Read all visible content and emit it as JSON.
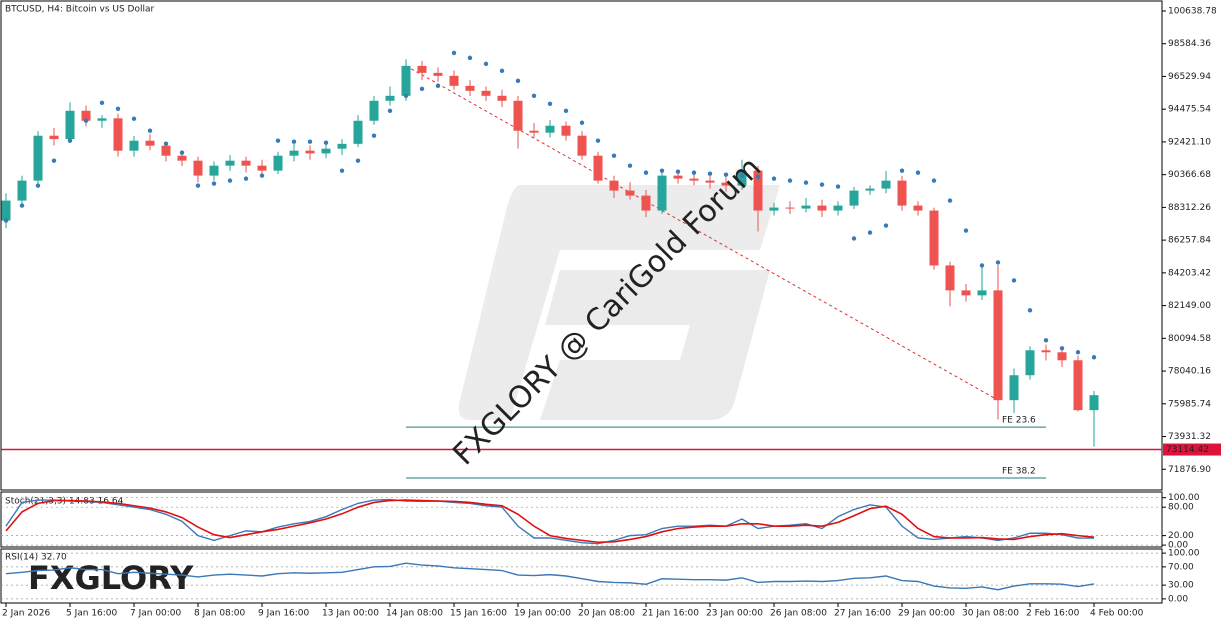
{
  "chart_data": [
    {
      "type": "candlestick",
      "title": "BTCUSD, H4:  Bitcoin vs US Dollar",
      "up_color": "#26a69a",
      "down_color": "#ef5350",
      "sar_color": "#3b78b7",
      "categories": [
        "2 Jan 2026",
        null,
        null,
        null,
        "5 Jan 16:00",
        null,
        null,
        null,
        "7 Jan 00:00",
        null,
        null,
        null,
        "8 Jan 08:00",
        null,
        null,
        null,
        "9 Jan 16:00",
        null,
        null,
        null,
        "13 Jan 00:00",
        null,
        null,
        null,
        "14 Jan 08:00",
        null,
        null,
        null,
        "15 Jan 16:00",
        null,
        null,
        null,
        "19 Jan 00:00",
        null,
        null,
        null,
        "20 Jan 08:00",
        null,
        null,
        null,
        "21 Jan 16:00",
        null,
        null,
        null,
        "23 Jan 00:00",
        null,
        null,
        null,
        "26 Jan 08:00",
        null,
        null,
        null,
        "27 Jan 16:00",
        null,
        null,
        null,
        "29 Jan 00:00",
        null,
        null,
        null,
        "30 Jan 08:00",
        null,
        null,
        null,
        "2 Feb 16:00",
        null,
        null,
        null,
        "4 Feb 00:00"
      ],
      "candles": [
        [
          87486,
          89200,
          87000,
          88739
        ],
        [
          88739,
          90300,
          88500,
          89992
        ],
        [
          89992,
          93100,
          89700,
          92810
        ],
        [
          92810,
          93300,
          92200,
          92600
        ],
        [
          92600,
          94900,
          92400,
          94376
        ],
        [
          94376,
          94700,
          93400,
          93749
        ],
        [
          93749,
          94100,
          93300,
          93900
        ],
        [
          93900,
          94200,
          91500,
          91871
        ],
        [
          91871,
          92800,
          91500,
          92497
        ],
        [
          92497,
          92900,
          91900,
          92184
        ],
        [
          92184,
          92400,
          91200,
          91557
        ],
        [
          91557,
          91900,
          90900,
          91244
        ],
        [
          91244,
          91500,
          89900,
          90305
        ],
        [
          90305,
          91200,
          90000,
          90931
        ],
        [
          90931,
          91600,
          90600,
          91244
        ],
        [
          91244,
          91500,
          90500,
          90931
        ],
        [
          90931,
          91300,
          90300,
          90618
        ],
        [
          90618,
          91800,
          90400,
          91557
        ],
        [
          91557,
          92300,
          91200,
          91871
        ],
        [
          91871,
          92200,
          91300,
          91700
        ],
        [
          91700,
          92400,
          91400,
          91996
        ],
        [
          91996,
          92600,
          91600,
          92300
        ],
        [
          92300,
          94100,
          92100,
          93749
        ],
        [
          93749,
          95300,
          93500,
          95002
        ],
        [
          95002,
          95900,
          94700,
          95315
        ],
        [
          95315,
          97600,
          95000,
          97194
        ],
        [
          97194,
          97500,
          96300,
          96756
        ],
        [
          96756,
          97100,
          96200,
          96568
        ],
        [
          96568,
          96900,
          95700,
          95941
        ],
        [
          95941,
          96300,
          95300,
          95628
        ],
        [
          95628,
          95900,
          95000,
          95315
        ],
        [
          95315,
          95700,
          94600,
          95002
        ],
        [
          95002,
          95300,
          92000,
          93123
        ],
        [
          93123,
          93600,
          92700,
          93000
        ],
        [
          93000,
          93800,
          92700,
          93436
        ],
        [
          93436,
          93700,
          92500,
          92810
        ],
        [
          92810,
          93100,
          91300,
          91557
        ],
        [
          91557,
          91800,
          89800,
          89992
        ],
        [
          89992,
          90300,
          88900,
          89366
        ],
        [
          89366,
          89900,
          88800,
          89052
        ],
        [
          89052,
          89400,
          87700,
          88113
        ],
        [
          88113,
          90600,
          87900,
          90305
        ],
        [
          90305,
          90500,
          89800,
          90117
        ],
        [
          90117,
          90400,
          89700,
          89992
        ],
        [
          89992,
          90300,
          89500,
          89866
        ],
        [
          89866,
          90200,
          89300,
          89678
        ],
        [
          89678,
          91300,
          89400,
          90618
        ],
        [
          90618,
          90900,
          86800,
          88113
        ],
        [
          88113,
          88600,
          87800,
          88301
        ],
        [
          88301,
          88700,
          87900,
          88238
        ],
        [
          88238,
          88900,
          88000,
          88426
        ],
        [
          88426,
          88800,
          87700,
          88113
        ],
        [
          88113,
          88700,
          87800,
          88426
        ],
        [
          88426,
          89600,
          88200,
          89366
        ],
        [
          89366,
          89700,
          89100,
          89491
        ],
        [
          89491,
          90600,
          89200,
          89992
        ],
        [
          89992,
          90300,
          88100,
          88426
        ],
        [
          88426,
          88700,
          87800,
          88113
        ],
        [
          88113,
          88300,
          84400,
          84668
        ],
        [
          84668,
          84900,
          82100,
          83103
        ],
        [
          83103,
          83500,
          82400,
          82789
        ],
        [
          82789,
          84600,
          82500,
          83103
        ],
        [
          83103,
          84700,
          75000,
          76213
        ],
        [
          76213,
          78200,
          75400,
          77779
        ],
        [
          77779,
          79600,
          77500,
          79344
        ],
        [
          79344,
          79700,
          78700,
          79219
        ],
        [
          79219,
          79500,
          78300,
          78718
        ],
        [
          78718,
          79000,
          75500,
          75587
        ],
        [
          75587,
          76800,
          73300,
          76526
        ]
      ],
      "sar": [
        87486,
        88426,
        89678,
        91244,
        92497,
        93749,
        94877,
        94501,
        93875,
        93123,
        92309,
        91745,
        89678,
        89804,
        89992,
        90117,
        90305,
        92497,
        92434,
        92434,
        92372,
        90618,
        91244,
        92810,
        94376,
        95315,
        95753,
        95941,
        98008,
        97695,
        97319,
        96881,
        96255,
        95315,
        94814,
        94376,
        93624,
        92497,
        91557,
        90931,
        90493,
        90618,
        90555,
        90493,
        90430,
        90367,
        90305,
        90242,
        90117,
        89992,
        89866,
        89741,
        89616,
        86359,
        86735,
        87173,
        90618,
        90493,
        89992,
        88739,
        86860,
        84668,
        84856,
        83729,
        81850,
        79971,
        79470,
        79220,
        78906
      ],
      "ylim": [
        70575,
        101265
      ],
      "yticks": [
        100638.78,
        98584.36,
        96529.94,
        94475.54,
        {
          "value": 92421.1,
          "label": "92421.10"
        },
        90366.68,
        88312.26,
        86257.84,
        84203.42,
        {
          "value": 82149,
          "label": "82149.00"
        },
        80094.58,
        78040.16,
        75985.74,
        73931.32,
        {
          "value": 71876.9,
          "label": "71876.90"
        }
      ],
      "grid": false,
      "price_line": 73114.42,
      "price_line_color": "#dc143c",
      "fe_levels": [
        {
          "label": "FE 23.6",
          "value": 74521
        },
        {
          "label": "FE 38.2",
          "value": 71327
        }
      ],
      "fe_color": "#1f7a7a",
      "watermark": "FXGLORY @ CariGold Forum"
    },
    {
      "type": "line",
      "title": "Stoch(21,3,3) 14.83 16.64",
      "ylim": [
        -4,
        112
      ],
      "yticks": [
        {
          "value": 100,
          "label": "100.00"
        },
        {
          "value": 80,
          "label": "80.00"
        },
        {
          "value": 20,
          "label": "20.00"
        },
        {
          "value": 0,
          "label": "0.00"
        }
      ],
      "grid": true,
      "series": [
        {
          "color": "#3b78b7",
          "values": [
            40,
            90,
            95,
            95,
            93,
            92,
            90,
            85,
            80,
            75,
            65,
            50,
            20,
            10,
            20,
            30,
            28,
            38,
            45,
            50,
            60,
            75,
            88,
            95,
            96,
            93,
            92,
            93,
            90,
            88,
            83,
            80,
            40,
            15,
            15,
            10,
            5,
            3,
            10,
            20,
            22,
            35,
            40,
            40,
            42,
            40,
            55,
            35,
            40,
            42,
            45,
            35,
            60,
            75,
            85,
            80,
            40,
            15,
            12,
            15,
            18,
            15,
            10,
            15,
            25,
            25,
            22,
            15,
            14.83
          ]
        },
        {
          "color": "#e01010",
          "values": [
            30,
            70,
            88,
            94,
            94,
            93,
            91,
            88,
            83,
            78,
            70,
            58,
            38,
            22,
            16,
            22,
            28,
            33,
            40,
            47,
            55,
            66,
            80,
            90,
            94,
            95,
            94,
            93,
            92,
            90,
            86,
            83,
            65,
            40,
            20,
            14,
            10,
            6,
            7,
            12,
            18,
            28,
            35,
            38,
            40,
            40,
            45,
            45,
            40,
            40,
            42,
            40,
            48,
            62,
            77,
            82,
            65,
            35,
            18,
            15,
            15,
            16,
            13,
            12,
            18,
            22,
            24,
            20,
            16.64
          ]
        }
      ]
    },
    {
      "type": "line",
      "title": "RSI(14) 32.70",
      "logo": "FXGLORY",
      "ylim": [
        -9,
        109
      ],
      "yticks": [
        {
          "value": 100,
          "label": "100.00"
        },
        {
          "value": 70,
          "label": "70.00"
        },
        {
          "value": 30,
          "label": "30.00"
        },
        {
          "value": 0,
          "label": "0.00"
        }
      ],
      "grid": true,
      "series": [
        {
          "color": "#3b78b7",
          "values": [
            55,
            58,
            62,
            63,
            68,
            64,
            64,
            55,
            58,
            56,
            54,
            52,
            48,
            52,
            54,
            52,
            50,
            55,
            57,
            56,
            57,
            58,
            64,
            70,
            71,
            78,
            74,
            72,
            68,
            66,
            64,
            62,
            52,
            51,
            53,
            50,
            44,
            38,
            36,
            35,
            32,
            44,
            43,
            42,
            42,
            41,
            46,
            36,
            38,
            38,
            39,
            38,
            40,
            45,
            46,
            50,
            40,
            38,
            28,
            24,
            23,
            26,
            20,
            28,
            33,
            33,
            32,
            27,
            32.7
          ]
        }
      ]
    }
  ]
}
